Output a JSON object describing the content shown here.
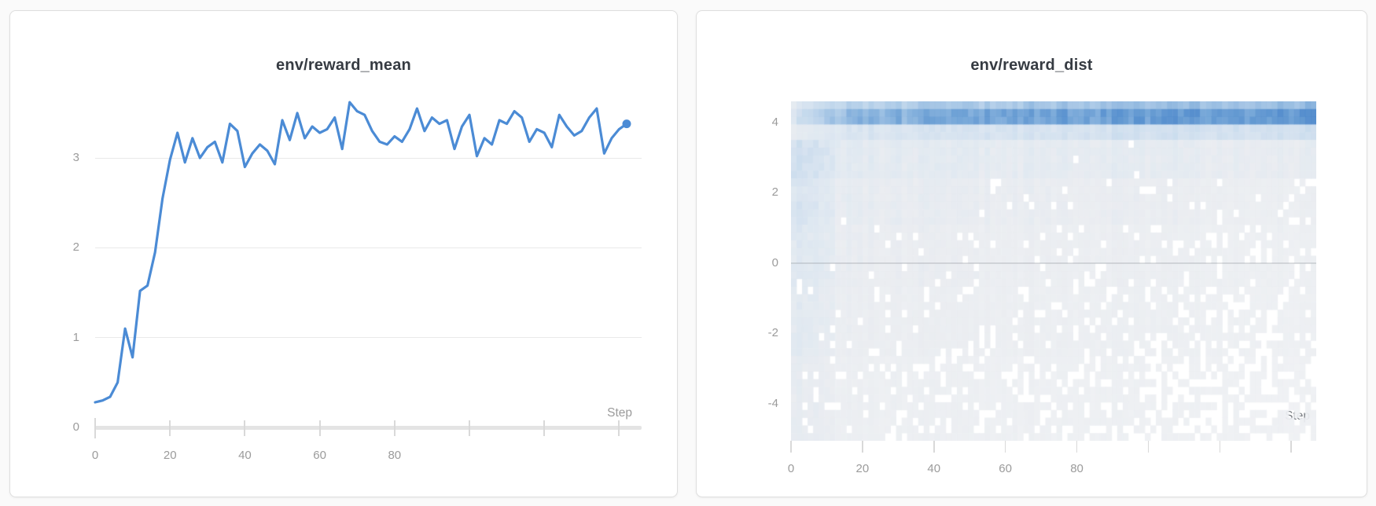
{
  "theme": {
    "page_background": "#fafafa",
    "card_background": "#ffffff",
    "card_border": "#dedede",
    "title_color": "#363b42",
    "label_color": "#9b9b9b",
    "grid_color": "#e9e9e9",
    "axis_bar_color": "#e4e4e4",
    "tick_color": "#d9d9d9"
  },
  "chart_data": [
    {
      "type": "line",
      "title": "env/reward_mean",
      "xlabel": "Step",
      "xticks": [
        0,
        20,
        40,
        60,
        80
      ],
      "xticks_unlabeled": [
        100,
        120,
        140
      ],
      "xlim": [
        0,
        146
      ],
      "yticks": [
        0,
        1,
        2,
        3
      ],
      "ylim": [
        0,
        3.7
      ],
      "grid": "horizontal",
      "series_name": "env/reward_mean",
      "color": "#4b8bd5",
      "end_marker": true,
      "x_start": 0,
      "x_step": 2,
      "values": [
        0.28,
        0.3,
        0.34,
        0.5,
        1.1,
        0.78,
        1.52,
        1.58,
        1.95,
        2.55,
        2.98,
        3.28,
        2.95,
        3.22,
        3.0,
        3.12,
        3.18,
        2.95,
        3.38,
        3.3,
        2.9,
        3.05,
        3.15,
        3.08,
        2.93,
        3.42,
        3.2,
        3.5,
        3.22,
        3.35,
        3.28,
        3.32,
        3.45,
        3.1,
        3.62,
        3.52,
        3.48,
        3.3,
        3.18,
        3.15,
        3.24,
        3.18,
        3.32,
        3.55,
        3.3,
        3.45,
        3.38,
        3.42,
        3.1,
        3.35,
        3.48,
        3.02,
        3.22,
        3.15,
        3.42,
        3.38,
        3.52,
        3.45,
        3.18,
        3.32,
        3.28,
        3.12,
        3.48,
        3.35,
        3.25,
        3.3,
        3.45,
        3.55,
        3.05,
        3.22,
        3.32,
        3.38
      ]
    },
    {
      "type": "heatmap",
      "title": "env/reward_dist",
      "xlabel": "Step",
      "xticks": [
        0,
        20,
        40,
        60,
        80
      ],
      "xticks_unlabeled": [
        100,
        120,
        140
      ],
      "xlim": [
        0,
        147
      ],
      "yticks": [
        4,
        2,
        0,
        -2,
        -4
      ],
      "ylim": [
        -5.05,
        4.6
      ],
      "grid_cols": 95,
      "grid_rows": 44,
      "seed": 7,
      "warmup_cols": 10,
      "zero_line_color": "rgba(100,105,115,0.20)",
      "colormap": [
        [
          0.0,
          "#f2f3f5"
        ],
        [
          0.15,
          "#e9ecf0"
        ],
        [
          0.3,
          "#dbe5f0"
        ],
        [
          0.5,
          "#bed5eb"
        ],
        [
          0.7,
          "#92b9e0"
        ],
        [
          0.85,
          "#699ed4"
        ],
        [
          1.0,
          "#4a87ca"
        ]
      ],
      "density_bands": [
        {
          "v_hi": 4.6,
          "v_lo": 3.85,
          "early": 0.5,
          "late": 0.95,
          "gap_early": 0.0,
          "gap_late": 0.0,
          "jitter": 0.3,
          "ramp": 0.3
        },
        {
          "v_hi": 3.85,
          "v_lo": 3.55,
          "early": 0.32,
          "late": 0.4,
          "gap_early": 0.0,
          "gap_late": 0.0,
          "jitter": 0.35,
          "ramp": 1
        },
        {
          "v_hi": 3.55,
          "v_lo": 2.5,
          "early": 0.24,
          "late": 0.19,
          "gap_early": 0.0,
          "gap_late": 0.02,
          "jitter": 0.55,
          "ramp": 1
        },
        {
          "v_hi": 2.5,
          "v_lo": 1.2,
          "early": 0.2,
          "late": 0.13,
          "gap_early": 0.0,
          "gap_late": 0.08,
          "jitter": 0.6,
          "ramp": 1
        },
        {
          "v_hi": 1.2,
          "v_lo": -0.6,
          "early": 0.17,
          "late": 0.1,
          "gap_early": 0.02,
          "gap_late": 0.2,
          "jitter": 0.6,
          "ramp": 1
        },
        {
          "v_hi": -0.6,
          "v_lo": -2.6,
          "early": 0.15,
          "late": 0.09,
          "gap_early": 0.05,
          "gap_late": 0.32,
          "jitter": 0.6,
          "ramp": 1
        },
        {
          "v_hi": -2.6,
          "v_lo": -5.05,
          "early": 0.12,
          "late": 0.07,
          "gap_early": 0.12,
          "gap_late": 0.45,
          "jitter": 0.6,
          "ramp": 1
        }
      ]
    }
  ]
}
